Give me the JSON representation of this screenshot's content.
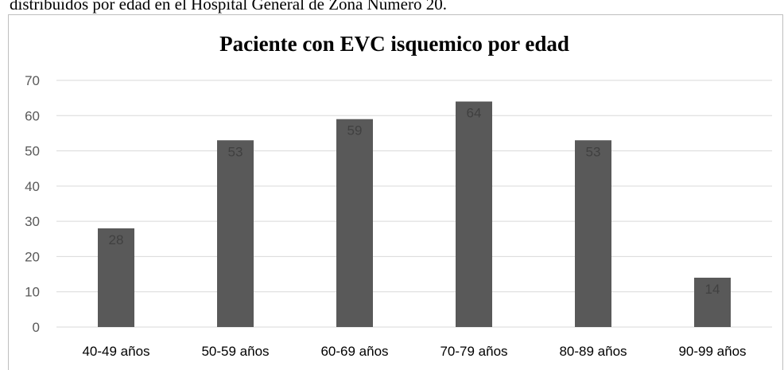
{
  "caption": "distribuidos por edad en el Hospital General de Zona Número 20.",
  "chart_data": {
    "type": "bar",
    "title": "Paciente con EVC isquemico por edad",
    "categories": [
      "40-49 años",
      "50-59 años",
      "60-69 años",
      "70-79 años",
      "80-89 años",
      "90-99 años"
    ],
    "values": [
      28,
      53,
      59,
      64,
      53,
      14
    ],
    "color": "#595959",
    "ylim": [
      0,
      70
    ],
    "yticks": [
      0,
      10,
      20,
      30,
      40,
      50,
      60,
      70
    ],
    "grid": true
  }
}
